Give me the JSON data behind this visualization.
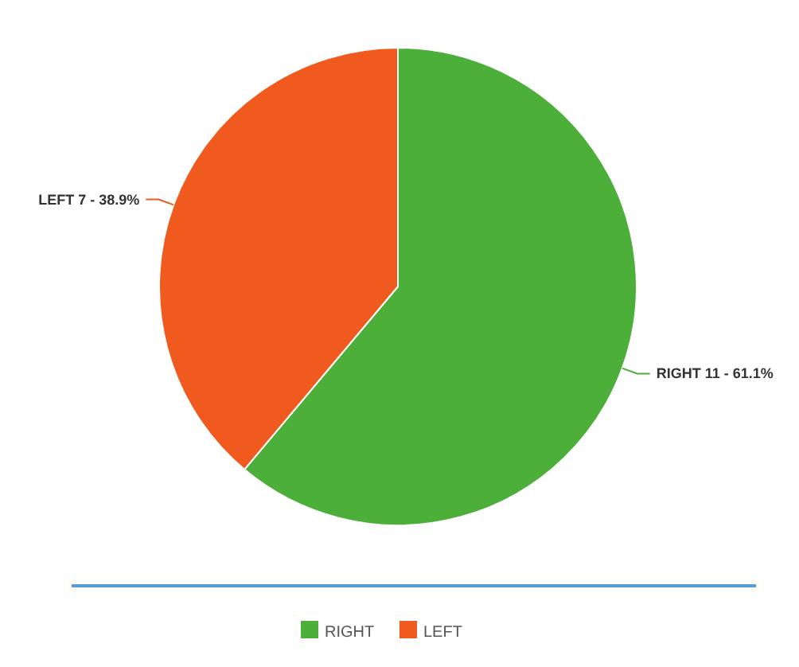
{
  "chart_data": {
    "type": "pie",
    "categories": [
      "RIGHT",
      "LEFT"
    ],
    "values": [
      11,
      7
    ],
    "colors": [
      "#4caf3a",
      "#f05a1e"
    ],
    "value_labels": [
      "RIGHT 11 - 61.1%",
      "LEFT 7 - 38.9%"
    ],
    "legend": "bottom"
  }
}
